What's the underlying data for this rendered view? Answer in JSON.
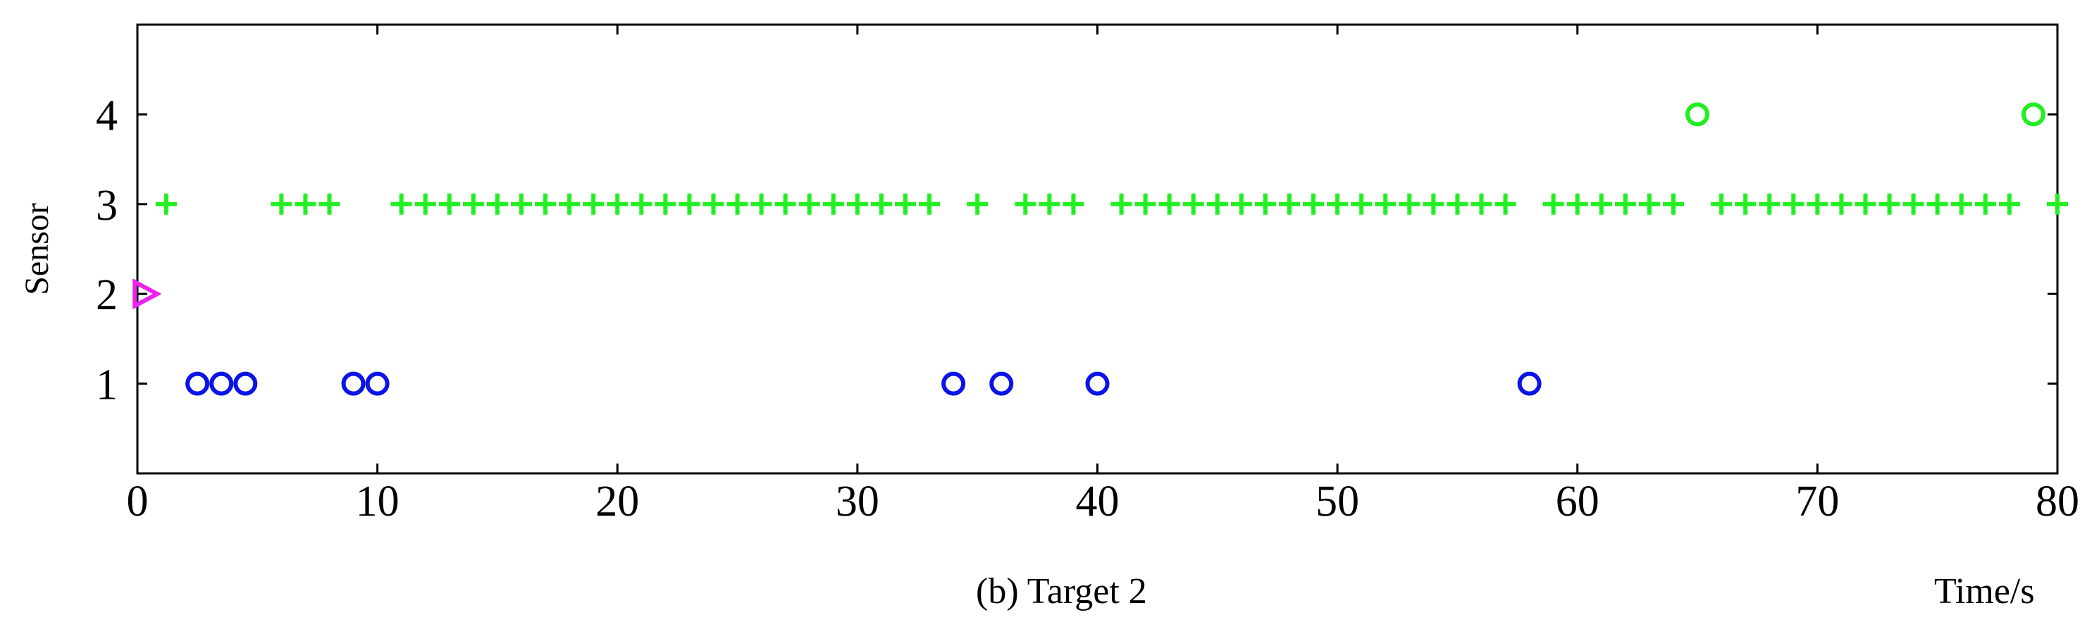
{
  "chart_data": {
    "type": "scatter",
    "caption": "(b) Target 2",
    "xlabel": "Time/s",
    "ylabel": "Sensor",
    "xlim": [
      0,
      80
    ],
    "ylim": [
      0,
      5
    ],
    "xticks": [
      0,
      10,
      20,
      30,
      40,
      50,
      60,
      70,
      80
    ],
    "yticks": [
      1,
      2,
      3,
      4
    ],
    "grid": false,
    "colors": {
      "blue": "#0a14e6",
      "green": "#22ee22",
      "magenta": "#ee22ee"
    },
    "series": [
      {
        "marker": "circle",
        "color": "#0a14e6",
        "points": [
          [
            2.5,
            1
          ],
          [
            3.5,
            1
          ],
          [
            4.5,
            1
          ],
          [
            9,
            1
          ],
          [
            10,
            1
          ],
          [
            34,
            1
          ],
          [
            36,
            1
          ],
          [
            40,
            1
          ],
          [
            58,
            1
          ]
        ]
      },
      {
        "marker": "triangle-right",
        "color": "#ee22ee",
        "points": [
          [
            0.3,
            2
          ]
        ]
      },
      {
        "marker": "plus",
        "color": "#22ee22",
        "points": [
          [
            1.2,
            3
          ],
          [
            6,
            3
          ],
          [
            7,
            3
          ],
          [
            8,
            3
          ],
          [
            11,
            3
          ],
          [
            12,
            3
          ],
          [
            13,
            3
          ],
          [
            14,
            3
          ],
          [
            15,
            3
          ],
          [
            16,
            3
          ],
          [
            17,
            3
          ],
          [
            18,
            3
          ],
          [
            19,
            3
          ],
          [
            20,
            3
          ],
          [
            21,
            3
          ],
          [
            22,
            3
          ],
          [
            23,
            3
          ],
          [
            24,
            3
          ],
          [
            25,
            3
          ],
          [
            26,
            3
          ],
          [
            27,
            3
          ],
          [
            28,
            3
          ],
          [
            29,
            3
          ],
          [
            30,
            3
          ],
          [
            31,
            3
          ],
          [
            32,
            3
          ],
          [
            33,
            3
          ],
          [
            35,
            3
          ],
          [
            37,
            3
          ],
          [
            38,
            3
          ],
          [
            39,
            3
          ],
          [
            41,
            3
          ],
          [
            42,
            3
          ],
          [
            43,
            3
          ],
          [
            44,
            3
          ],
          [
            45,
            3
          ],
          [
            46,
            3
          ],
          [
            47,
            3
          ],
          [
            48,
            3
          ],
          [
            49,
            3
          ],
          [
            50,
            3
          ],
          [
            51,
            3
          ],
          [
            52,
            3
          ],
          [
            53,
            3
          ],
          [
            54,
            3
          ],
          [
            55,
            3
          ],
          [
            56,
            3
          ],
          [
            57,
            3
          ],
          [
            59,
            3
          ],
          [
            60,
            3
          ],
          [
            61,
            3
          ],
          [
            62,
            3
          ],
          [
            63,
            3
          ],
          [
            64,
            3
          ],
          [
            66,
            3
          ],
          [
            67,
            3
          ],
          [
            68,
            3
          ],
          [
            69,
            3
          ],
          [
            70,
            3
          ],
          [
            71,
            3
          ],
          [
            72,
            3
          ],
          [
            73,
            3
          ],
          [
            74,
            3
          ],
          [
            75,
            3
          ],
          [
            76,
            3
          ],
          [
            77,
            3
          ],
          [
            78,
            3
          ],
          [
            80,
            3
          ]
        ]
      },
      {
        "marker": "circle",
        "color": "#22ee22",
        "points": [
          [
            65,
            4
          ],
          [
            79,
            4
          ]
        ]
      }
    ]
  }
}
